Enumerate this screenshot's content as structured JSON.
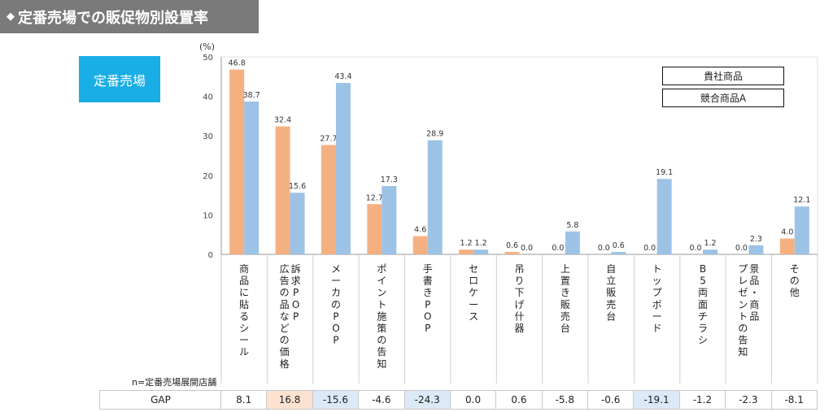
{
  "header": {
    "title": "定番売場での販促物別設置率",
    "bullet_icon": "diamond-icon"
  },
  "section_badge": "定番売場",
  "legend": [
    "貴社商品",
    "競合商品A"
  ],
  "n_label": "n=定番売場展開店舗",
  "gap": {
    "label": "GAP",
    "values": [
      "8.1",
      "16.8",
      "-15.6",
      "-4.6",
      "-24.3",
      "0.0",
      "0.6",
      "-5.8",
      "-0.6",
      "-19.1",
      "-1.2",
      "-2.3",
      "-8.1"
    ],
    "highlight": [
      "plain",
      "pos",
      "neg",
      "plain",
      "neg",
      "plain",
      "plain",
      "plain",
      "plain",
      "neg",
      "plain",
      "plain",
      "plain"
    ]
  },
  "colors": {
    "series_a": "#f5b082",
    "series_b": "#9cc3e6",
    "badge": "#1aaee6",
    "title_bar": "#7a7a7a"
  },
  "chart_data": {
    "type": "bar",
    "ylabel": "(%)",
    "ylim": [
      0,
      50
    ],
    "yticks": [
      0,
      10,
      20,
      30,
      40,
      50
    ],
    "grid": false,
    "legend_position": "top-right",
    "categories": [
      "商品に貼るシール",
      "広告の品などの価格訴求POP",
      "メーカのPOP",
      "ポイント施策の告知",
      "手書きPOP",
      "セロケース",
      "吊り下げ什器",
      "上置き販売台",
      "自立販売台",
      "トップボード",
      "B5両面チラシ",
      "景品・商品プレゼントの告知",
      "その他"
    ],
    "category_columns": [
      [
        "商品に貼るシール"
      ],
      [
        "訴求POP",
        "広告の品などの価格"
      ],
      [
        "メーカのPOP"
      ],
      [
        "ポイント施策の告知"
      ],
      [
        "手書きPOP"
      ],
      [
        "セロケース"
      ],
      [
        "吊り下げ什器"
      ],
      [
        "上置き販売台"
      ],
      [
        "自立販売台"
      ],
      [
        "トップボード"
      ],
      [
        "B5両面チラシ"
      ],
      [
        "景品・商品",
        "プレゼントの告知"
      ],
      [
        "その他"
      ]
    ],
    "series": [
      {
        "name": "貴社商品",
        "values": [
          46.8,
          32.4,
          27.7,
          12.7,
          4.6,
          1.2,
          0.6,
          0.0,
          0.0,
          0.0,
          0.0,
          0.0,
          4.0
        ]
      },
      {
        "name": "競合商品A",
        "values": [
          38.7,
          15.6,
          43.4,
          17.3,
          28.9,
          1.2,
          0.0,
          5.8,
          0.6,
          19.1,
          1.2,
          2.3,
          12.1
        ]
      }
    ]
  }
}
